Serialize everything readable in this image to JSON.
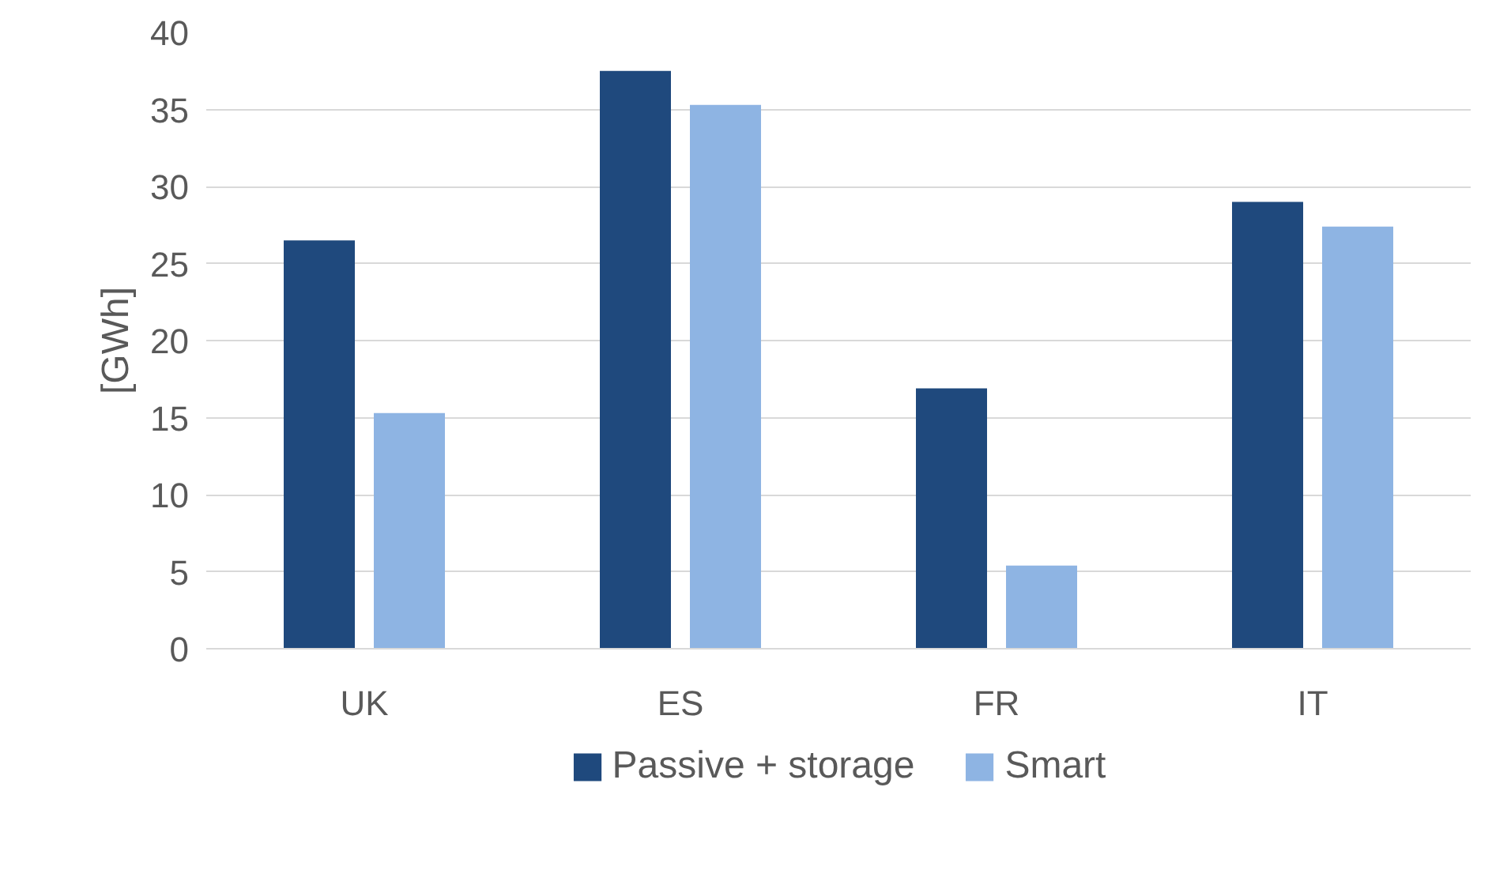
{
  "chart_data": {
    "type": "bar",
    "ylabel": "[GWh]",
    "categories": [
      "UK",
      "ES",
      "FR",
      "IT"
    ],
    "series": [
      {
        "name": "Passive + storage",
        "color": "#1f497d",
        "values": [
          26.5,
          37.5,
          16.9,
          29.0
        ]
      },
      {
        "name": "Smart",
        "color": "#8eb4e3",
        "values": [
          15.3,
          35.3,
          5.4,
          27.4
        ]
      }
    ],
    "ylim": [
      0,
      40
    ],
    "yticks": [
      0,
      5,
      10,
      15,
      20,
      25,
      30,
      35,
      40
    ],
    "grid": "y",
    "legend": "bottom"
  }
}
